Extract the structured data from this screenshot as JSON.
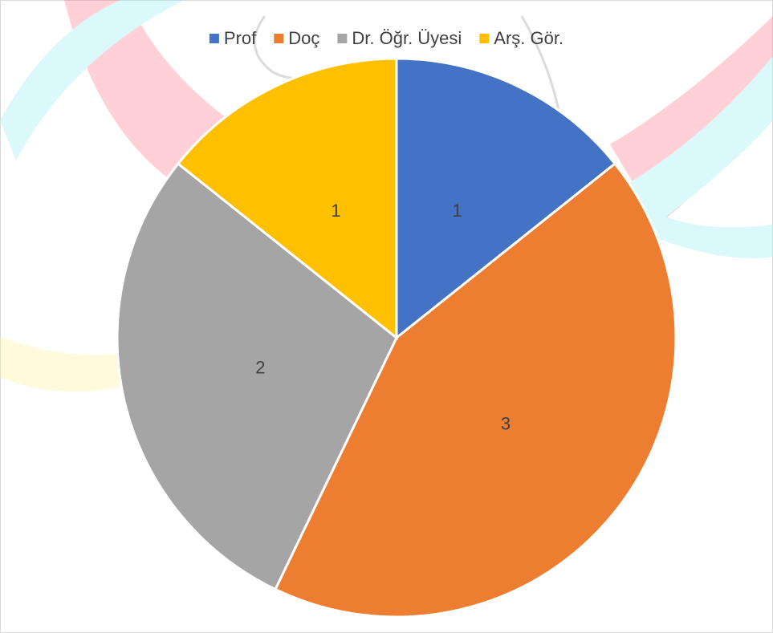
{
  "chart_data": {
    "type": "pie",
    "categories": [
      "Prof",
      "Doç",
      "Dr. Öğr. Üyesi",
      "Arş. Gör."
    ],
    "values": [
      1,
      3,
      2,
      1
    ],
    "colors": [
      "#4472c4",
      "#ed7d31",
      "#a5a5a5",
      "#ffc000"
    ],
    "legend": "top"
  }
}
